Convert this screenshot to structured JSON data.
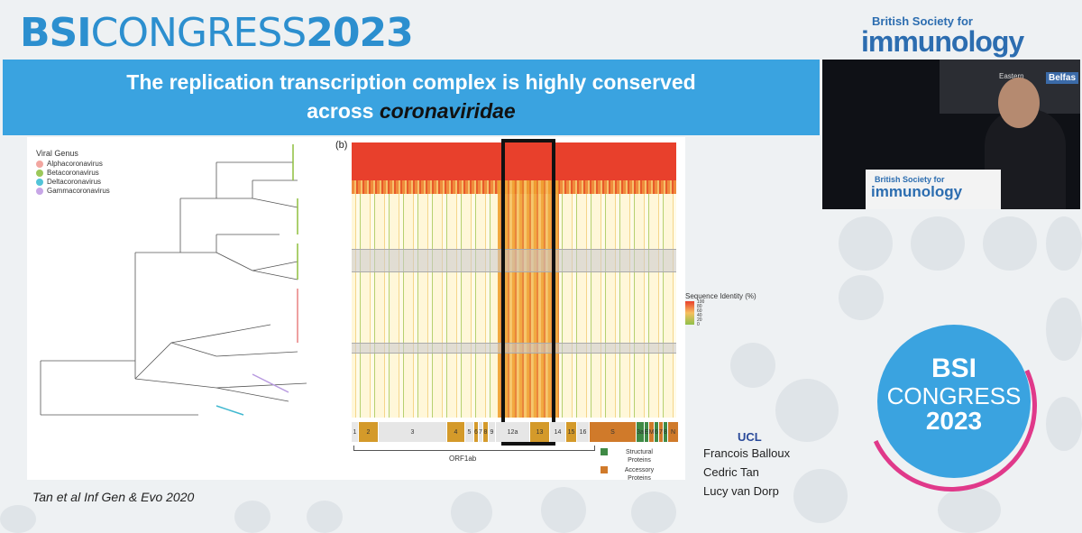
{
  "header": {
    "title_bold": "BSI",
    "title_light": "CONGRESS",
    "title_year": "2023"
  },
  "logo": {
    "small": "British Society for",
    "big": "immunology"
  },
  "banner": {
    "line1": "The replication transcription complex is highly conserved",
    "line2_prefix": "across",
    "line2_italic": "coronaviridae"
  },
  "video": {
    "podium_small": "British Society for",
    "podium_big": "immunology",
    "stage_text": "Eastern",
    "stage_text2": "Belfas"
  },
  "figure": {
    "legend_title": "Viral Genus",
    "legend": [
      {
        "label": "Alphacoronavirus",
        "color": "#f2a6a0"
      },
      {
        "label": "Betacoronavirus",
        "color": "#9cc85a"
      },
      {
        "label": "Deltacoronavirus",
        "color": "#52c4d8"
      },
      {
        "label": "Gammacoronavirus",
        "color": "#c7a6e6"
      }
    ],
    "panel_label": "(b)",
    "seq_title": "Sequence Identity (%)",
    "seq_ticks": [
      "100",
      "80",
      "60",
      "40",
      "20",
      "0"
    ],
    "segments": [
      {
        "label": "1",
        "color": "#e8e8e8",
        "w": 8
      },
      {
        "label": "2",
        "color": "#d49a2a",
        "w": 22
      },
      {
        "label": "3",
        "color": "#e6e6e6",
        "w": 76
      },
      {
        "label": "4",
        "color": "#d49a2a",
        "w": 20
      },
      {
        "label": "5",
        "color": "#e6e6e6",
        "w": 10
      },
      {
        "label": "6",
        "color": "#d49a2a",
        "w": 5
      },
      {
        "label": "7",
        "color": "#e6e6e6",
        "w": 5
      },
      {
        "label": "8",
        "color": "#d49a2a",
        "w": 6
      },
      {
        "label": "9",
        "color": "#e6e6e6",
        "w": 8
      },
      {
        "label": "12a",
        "color": "#e6e6e6",
        "w": 38
      },
      {
        "label": "13",
        "color": "#d49a2a",
        "w": 22
      },
      {
        "label": "14",
        "color": "#e6e6e6",
        "w": 18
      },
      {
        "label": "15",
        "color": "#d49a2a",
        "w": 12
      },
      {
        "label": "16",
        "color": "#e6e6e6",
        "w": 14
      },
      {
        "label": "S",
        "color": "#d07a2a",
        "w": 52
      },
      {
        "label": "3a",
        "color": "#3f8a45",
        "w": 9
      },
      {
        "label": "E",
        "color": "#3f8a45",
        "w": 5
      },
      {
        "label": "M",
        "color": "#d07a2a",
        "w": 6
      },
      {
        "label": "6",
        "color": "#3f8a45",
        "w": 5
      },
      {
        "label": "7",
        "color": "#d07a2a",
        "w": 5
      },
      {
        "label": "8",
        "color": "#3f8a45",
        "w": 5
      },
      {
        "label": "N",
        "color": "#d07a2a",
        "w": 12
      }
    ],
    "orf_label": "ORF1ab",
    "key_structural": "Structural Proteins",
    "key_accessory": "Accessory Proteins"
  },
  "credits": {
    "org": "UCL",
    "authors": [
      "Francois Balloux",
      "Cedric Tan",
      "Lucy van Dorp"
    ]
  },
  "citation": "Tan et al Inf Gen & Evo 2020",
  "badge": {
    "line1": "BSI",
    "line2": "CONGRESS",
    "line3": "2023"
  }
}
